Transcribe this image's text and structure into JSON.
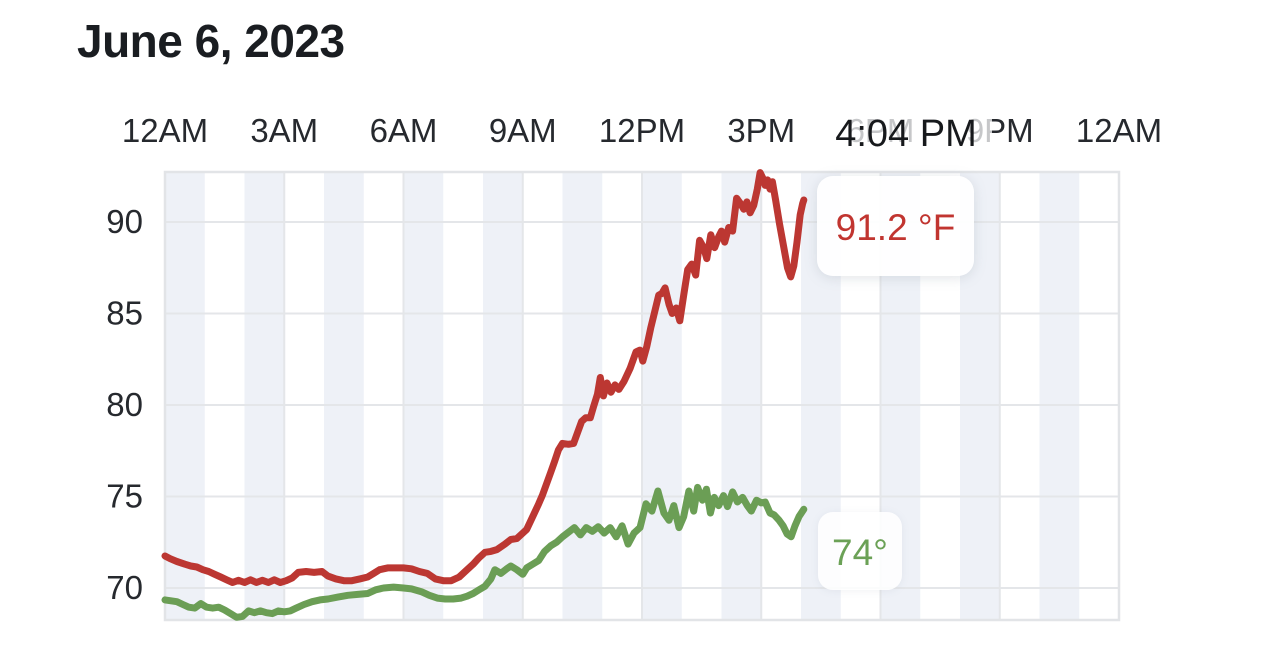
{
  "header": {
    "title": "June 6, 2023"
  },
  "tooltip": {
    "time": "4:04 PM",
    "temperature": "91.2 °F",
    "secondary_temperature": "74°"
  },
  "colors": {
    "background": "#ffffff",
    "title_text": "#1a1d21",
    "axis_label": "#26292e",
    "gridline": "#e4e6e9",
    "plot_border": "#e2e4e7",
    "hour_band": "#eef1f7",
    "temperature_line": "#bc3732",
    "temperature_label": "#c13530",
    "secondary_line": "#6b9e55",
    "secondary_label": "#6ba156"
  },
  "chart_data": {
    "type": "line",
    "title": "June 6, 2023",
    "current_time": "4:04 PM",
    "x_axis": {
      "unit": "hour of day",
      "range_hours": [
        0,
        24
      ],
      "tick_hours": [
        0,
        3,
        6,
        9,
        12,
        15,
        18,
        21,
        24
      ],
      "tick_labels": [
        "12AM",
        "3AM",
        "6AM",
        "9AM",
        "12PM",
        "3PM",
        "6PM",
        "9PM",
        "12AM"
      ]
    },
    "y_axis": {
      "unit": "°F",
      "ticks": [
        70,
        75,
        80,
        85,
        90
      ],
      "range": [
        68.25,
        92.73
      ]
    },
    "grid": {
      "vertical_every_hours": 3,
      "horizontal_every_deg": 5,
      "alternating_hour_bands": "even hours shaded"
    },
    "legend_position": "inline labels at line ends",
    "series": [
      {
        "name": "temperature",
        "color": "#bc3732",
        "current_label": "91.2 °F",
        "points": [
          [
            0,
            71.75
          ],
          [
            0.13,
            71.6
          ],
          [
            0.3,
            71.45
          ],
          [
            0.5,
            71.3
          ],
          [
            0.65,
            71.2
          ],
          [
            0.8,
            71.15
          ],
          [
            0.95,
            71
          ],
          [
            1.1,
            70.9
          ],
          [
            1.25,
            70.75
          ],
          [
            1.4,
            70.6
          ],
          [
            1.55,
            70.45
          ],
          [
            1.7,
            70.3
          ],
          [
            1.85,
            70.42
          ],
          [
            2,
            70.3
          ],
          [
            2.15,
            70.45
          ],
          [
            2.3,
            70.3
          ],
          [
            2.45,
            70.42
          ],
          [
            2.6,
            70.3
          ],
          [
            2.75,
            70.45
          ],
          [
            2.9,
            70.3
          ],
          [
            3.05,
            70.4
          ],
          [
            3.2,
            70.55
          ],
          [
            3.35,
            70.85
          ],
          [
            3.55,
            70.9
          ],
          [
            3.75,
            70.85
          ],
          [
            3.95,
            70.9
          ],
          [
            4.1,
            70.65
          ],
          [
            4.3,
            70.5
          ],
          [
            4.5,
            70.4
          ],
          [
            4.7,
            70.4
          ],
          [
            4.9,
            70.5
          ],
          [
            5.1,
            70.6
          ],
          [
            5.25,
            70.8
          ],
          [
            5.4,
            71
          ],
          [
            5.6,
            71.1
          ],
          [
            5.8,
            71.1
          ],
          [
            6,
            71.1
          ],
          [
            6.2,
            71.05
          ],
          [
            6.4,
            70.9
          ],
          [
            6.6,
            70.8
          ],
          [
            6.8,
            70.5
          ],
          [
            7,
            70.4
          ],
          [
            7.2,
            70.4
          ],
          [
            7.4,
            70.6
          ],
          [
            7.6,
            71
          ],
          [
            7.75,
            71.3
          ],
          [
            7.9,
            71.65
          ],
          [
            8.05,
            71.95
          ],
          [
            8.2,
            72
          ],
          [
            8.35,
            72.1
          ],
          [
            8.55,
            72.4
          ],
          [
            8.7,
            72.65
          ],
          [
            8.85,
            72.7
          ],
          [
            9,
            73
          ],
          [
            9.1,
            73.2
          ],
          [
            9.25,
            73.9
          ],
          [
            9.4,
            74.6
          ],
          [
            9.5,
            75.1
          ],
          [
            9.6,
            75.7
          ],
          [
            9.7,
            76.3
          ],
          [
            9.8,
            76.9
          ],
          [
            9.9,
            77.55
          ],
          [
            10,
            77.9
          ],
          [
            10.15,
            77.85
          ],
          [
            10.28,
            77.9
          ],
          [
            10.38,
            78.5
          ],
          [
            10.48,
            79.1
          ],
          [
            10.58,
            79.3
          ],
          [
            10.7,
            79.3
          ],
          [
            10.78,
            79.9
          ],
          [
            10.88,
            80.6
          ],
          [
            10.95,
            81.5
          ],
          [
            11.03,
            80.5
          ],
          [
            11.12,
            81.2
          ],
          [
            11.22,
            80.7
          ],
          [
            11.32,
            81.1
          ],
          [
            11.42,
            80.85
          ],
          [
            11.55,
            81.3
          ],
          [
            11.7,
            82
          ],
          [
            11.85,
            82.9
          ],
          [
            11.95,
            83
          ],
          [
            12.02,
            82.4
          ],
          [
            12.12,
            83.2
          ],
          [
            12.22,
            84.2
          ],
          [
            12.32,
            85.1
          ],
          [
            12.42,
            86
          ],
          [
            12.5,
            86.1
          ],
          [
            12.58,
            86.4
          ],
          [
            12.68,
            85.5
          ],
          [
            12.76,
            85
          ],
          [
            12.86,
            85.3
          ],
          [
            12.95,
            84.6
          ],
          [
            13.05,
            86
          ],
          [
            13.15,
            87.4
          ],
          [
            13.25,
            87.7
          ],
          [
            13.35,
            87.1
          ],
          [
            13.45,
            89
          ],
          [
            13.55,
            88.6
          ],
          [
            13.63,
            88
          ],
          [
            13.73,
            89.3
          ],
          [
            13.83,
            88.6
          ],
          [
            13.93,
            89.2
          ],
          [
            14,
            89.5
          ],
          [
            14.08,
            88.9
          ],
          [
            14.18,
            89.7
          ],
          [
            14.28,
            89.5
          ],
          [
            14.38,
            91.3
          ],
          [
            14.48,
            91
          ],
          [
            14.56,
            90.7
          ],
          [
            14.64,
            91.1
          ],
          [
            14.72,
            90.5
          ],
          [
            14.81,
            90.9
          ],
          [
            14.9,
            91.8
          ],
          [
            14.97,
            92.7
          ],
          [
            15.04,
            92.4
          ],
          [
            15.1,
            92
          ],
          [
            15.16,
            92.3
          ],
          [
            15.22,
            91.8
          ],
          [
            15.28,
            92.2
          ],
          [
            15.36,
            91.2
          ],
          [
            15.46,
            89.9
          ],
          [
            15.56,
            88.7
          ],
          [
            15.66,
            87.5
          ],
          [
            15.74,
            87
          ],
          [
            15.82,
            87.6
          ],
          [
            15.9,
            88.9
          ],
          [
            15.98,
            90.4
          ],
          [
            16.04,
            91
          ],
          [
            16.07,
            91.2
          ]
        ]
      },
      {
        "name": "secondary temperature",
        "color": "#6b9e55",
        "current_label": "74°",
        "points": [
          [
            0,
            69.35
          ],
          [
            0.15,
            69.3
          ],
          [
            0.3,
            69.25
          ],
          [
            0.45,
            69.1
          ],
          [
            0.6,
            68.95
          ],
          [
            0.75,
            68.9
          ],
          [
            0.9,
            69.15
          ],
          [
            1.05,
            68.95
          ],
          [
            1.2,
            68.9
          ],
          [
            1.35,
            68.95
          ],
          [
            1.5,
            68.8
          ],
          [
            1.65,
            68.6
          ],
          [
            1.8,
            68.4
          ],
          [
            1.95,
            68.45
          ],
          [
            2.1,
            68.75
          ],
          [
            2.25,
            68.65
          ],
          [
            2.4,
            68.75
          ],
          [
            2.55,
            68.65
          ],
          [
            2.7,
            68.6
          ],
          [
            2.85,
            68.75
          ],
          [
            3,
            68.7
          ],
          [
            3.15,
            68.75
          ],
          [
            3.3,
            68.9
          ],
          [
            3.5,
            69.1
          ],
          [
            3.7,
            69.25
          ],
          [
            3.9,
            69.35
          ],
          [
            4.1,
            69.4
          ],
          [
            4.35,
            69.5
          ],
          [
            4.6,
            69.6
          ],
          [
            4.85,
            69.65
          ],
          [
            5.1,
            69.7
          ],
          [
            5.3,
            69.9
          ],
          [
            5.5,
            70
          ],
          [
            5.75,
            70.05
          ],
          [
            6,
            70
          ],
          [
            6.2,
            69.95
          ],
          [
            6.45,
            69.8
          ],
          [
            6.65,
            69.6
          ],
          [
            6.85,
            69.45
          ],
          [
            7.05,
            69.4
          ],
          [
            7.25,
            69.4
          ],
          [
            7.45,
            69.45
          ],
          [
            7.6,
            69.55
          ],
          [
            7.75,
            69.7
          ],
          [
            7.9,
            69.9
          ],
          [
            8.05,
            70.1
          ],
          [
            8.2,
            70.5
          ],
          [
            8.3,
            71
          ],
          [
            8.45,
            70.8
          ],
          [
            8.6,
            71.05
          ],
          [
            8.7,
            71.2
          ],
          [
            8.85,
            71
          ],
          [
            9,
            70.75
          ],
          [
            9.1,
            71.1
          ],
          [
            9.25,
            71.3
          ],
          [
            9.4,
            71.5
          ],
          [
            9.55,
            72
          ],
          [
            9.7,
            72.3
          ],
          [
            9.85,
            72.5
          ],
          [
            10,
            72.8
          ],
          [
            10.15,
            73.05
          ],
          [
            10.3,
            73.3
          ],
          [
            10.45,
            72.9
          ],
          [
            10.6,
            73.3
          ],
          [
            10.75,
            73.1
          ],
          [
            10.9,
            73.35
          ],
          [
            11.05,
            73
          ],
          [
            11.2,
            73.3
          ],
          [
            11.35,
            72.8
          ],
          [
            11.5,
            73.4
          ],
          [
            11.65,
            72.4
          ],
          [
            11.8,
            73
          ],
          [
            11.95,
            73.3
          ],
          [
            12.1,
            74.6
          ],
          [
            12.25,
            74.2
          ],
          [
            12.4,
            75.3
          ],
          [
            12.55,
            74.1
          ],
          [
            12.68,
            73.7
          ],
          [
            12.8,
            74.5
          ],
          [
            12.93,
            73.3
          ],
          [
            13.05,
            73.9
          ],
          [
            13.18,
            75.3
          ],
          [
            13.3,
            74.2
          ],
          [
            13.4,
            75.5
          ],
          [
            13.52,
            74.8
          ],
          [
            13.62,
            75.4
          ],
          [
            13.72,
            74.1
          ],
          [
            13.82,
            74.95
          ],
          [
            13.93,
            74.5
          ],
          [
            14.05,
            75.05
          ],
          [
            14.15,
            74.45
          ],
          [
            14.28,
            75.25
          ],
          [
            14.4,
            74.7
          ],
          [
            14.53,
            74.95
          ],
          [
            14.65,
            74.5
          ],
          [
            14.75,
            74.2
          ],
          [
            14.88,
            74.8
          ],
          [
            15,
            74.65
          ],
          [
            15.1,
            74.7
          ],
          [
            15.22,
            74.1
          ],
          [
            15.32,
            74
          ],
          [
            15.45,
            73.7
          ],
          [
            15.55,
            73.4
          ],
          [
            15.65,
            72.95
          ],
          [
            15.75,
            72.8
          ],
          [
            15.85,
            73.4
          ],
          [
            15.95,
            73.9
          ],
          [
            16.07,
            74.3
          ]
        ]
      }
    ]
  }
}
